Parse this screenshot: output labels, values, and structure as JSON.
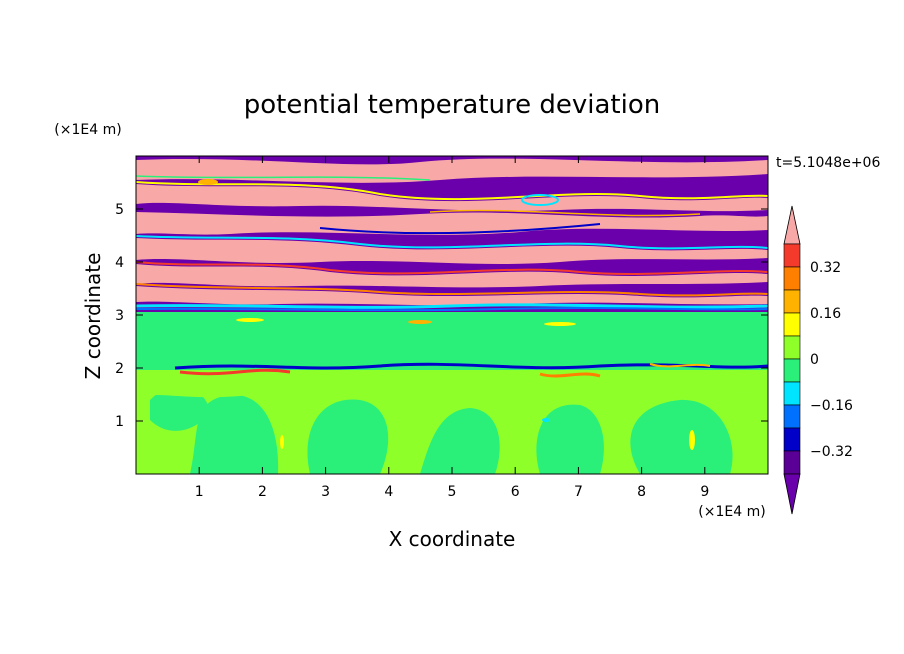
{
  "chart_data": {
    "type": "heatmap",
    "title": "potential temperature deviation",
    "xlabel": "X coordinate",
    "ylabel": "Z coordinate",
    "x_unit": "(×1E4 m)",
    "y_unit": "(×1E4 m)",
    "time_label": "t=5.1048e+06",
    "xlim": [
      0,
      10
    ],
    "ylim": [
      0,
      6
    ],
    "x_ticks": [
      "1",
      "2",
      "3",
      "4",
      "5",
      "6",
      "7",
      "8",
      "9"
    ],
    "y_ticks": [
      "1",
      "2",
      "3",
      "4",
      "5"
    ],
    "colorbar": {
      "levels": [
        -0.4,
        -0.32,
        -0.24,
        -0.16,
        -0.08,
        0,
        0.08,
        0.16,
        0.24,
        0.32,
        0.4
      ],
      "labels": [
        "0.32",
        "0.16",
        "0",
        "−0.16",
        "−0.32"
      ],
      "colors_high_to_low": [
        "#f9a8a8",
        "#f43a2a",
        "#ff7f00",
        "#ffb300",
        "#ffff00",
        "#8fff2a",
        "#2af07a",
        "#00e5ff",
        "#0070ff",
        "#0000c8",
        "#5a0096",
        "#6a00ab"
      ]
    },
    "colors": {
      "purple": "#6a00ab",
      "pink": "#f9a8a8",
      "lower_green": "#2af07a",
      "light_green": "#8fff2a"
    }
  }
}
